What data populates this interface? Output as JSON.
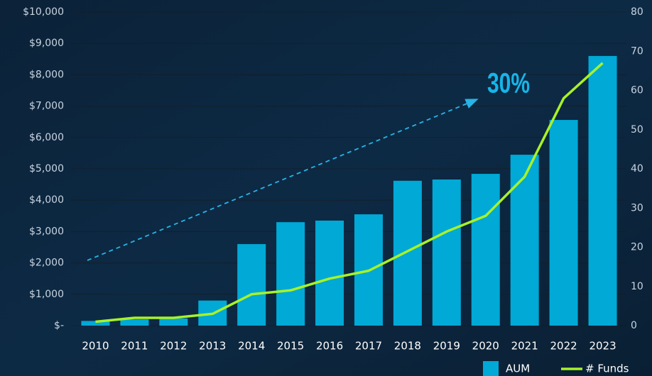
{
  "chart_data": {
    "type": "bar-line",
    "annotation": "30%",
    "categories": [
      "2010",
      "2011",
      "2012",
      "2013",
      "2014",
      "2015",
      "2016",
      "2017",
      "2018",
      "2019",
      "2020",
      "2021",
      "2022",
      "2023"
    ],
    "series": [
      {
        "name": "AUM",
        "type": "bar",
        "color": "#00a9d6",
        "values": [
          150,
          200,
          230,
          800,
          2600,
          3300,
          3350,
          3550,
          4620,
          4660,
          4840,
          5450,
          6560,
          8600
        ]
      },
      {
        "name": "# Funds",
        "type": "line",
        "axis": "y2",
        "color": "#a8f226",
        "values": [
          1,
          2,
          2,
          3,
          8,
          9,
          12,
          14,
          19,
          24,
          28,
          38,
          58,
          67
        ]
      }
    ],
    "ylim": [
      0,
      10000
    ],
    "yticks": [
      {
        "value": 0,
        "label": "$-"
      },
      {
        "value": 1000,
        "label": "$1,000"
      },
      {
        "value": 2000,
        "label": "$2,000"
      },
      {
        "value": 3000,
        "label": "$3,000"
      },
      {
        "value": 4000,
        "label": "$4,000"
      },
      {
        "value": 5000,
        "label": "$5,000"
      },
      {
        "value": 6000,
        "label": "$6,000"
      },
      {
        "value": 7000,
        "label": "$7,000"
      },
      {
        "value": 8000,
        "label": "$8,000"
      },
      {
        "value": 9000,
        "label": "$9,000"
      },
      {
        "value": 10000,
        "label": "$10,000"
      }
    ],
    "y2lim": [
      0,
      80
    ],
    "y2ticks": [
      0,
      10,
      20,
      30,
      40,
      50,
      60,
      70,
      80
    ],
    "grid": true,
    "legend": "bottom-right"
  }
}
